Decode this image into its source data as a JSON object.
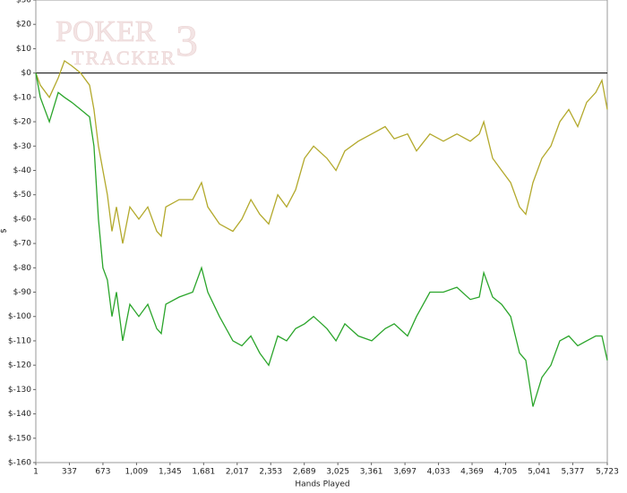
{
  "chart_data": {
    "type": "line",
    "watermark": [
      "POKER",
      "3",
      "TRACKER"
    ],
    "x_label": "Hands Played",
    "y_label": "$",
    "x": [
      1,
      46,
      136,
      225,
      288,
      360,
      449,
      539,
      583,
      628,
      673,
      718,
      763,
      808,
      871,
      943,
      1032,
      1122,
      1212,
      1257,
      1302,
      1436,
      1571,
      1660,
      1723,
      1840,
      1974,
      2064,
      2154,
      2243,
      2333,
      2423,
      2512,
      2602,
      2692,
      2782,
      2916,
      3006,
      3095,
      3230,
      3364,
      3499,
      3589,
      3723,
      3813,
      3947,
      4082,
      4217,
      4351,
      4441,
      4486,
      4575,
      4665,
      4755,
      4844,
      4907,
      4979,
      5068,
      5158,
      5248,
      5337,
      5427,
      5517,
      5607,
      5669,
      5723
    ],
    "series": [
      {
        "color": "#b3a92c",
        "values": [
          0,
          -5,
          -10,
          -2,
          5,
          3,
          0,
          -5,
          -15,
          -30,
          -40,
          -50,
          -65,
          -55,
          -70,
          -55,
          -60,
          -55,
          -65,
          -67,
          -55,
          -52,
          -52,
          -45,
          -55,
          -62,
          -65,
          -60,
          -52,
          -58,
          -62,
          -50,
          -55,
          -48,
          -35,
          -30,
          -35,
          -40,
          -32,
          -28,
          -25,
          -22,
          -27,
          -25,
          -32,
          -25,
          -28,
          -25,
          -28,
          -25,
          -20,
          -35,
          -40,
          -45,
          -55,
          -58,
          -45,
          -35,
          -30,
          -20,
          -15,
          -22,
          -12,
          -8,
          -3,
          -15
        ]
      },
      {
        "color": "#2ba52b",
        "values": [
          0,
          -10,
          -20,
          -8,
          -10,
          -12,
          -15,
          -18,
          -30,
          -60,
          -80,
          -85,
          -100,
          -90,
          -110,
          -95,
          -100,
          -95,
          -105,
          -107,
          -95,
          -92,
          -90,
          -80,
          -90,
          -100,
          -110,
          -112,
          -108,
          -115,
          -120,
          -108,
          -110,
          -105,
          -103,
          -100,
          -105,
          -110,
          -103,
          -108,
          -110,
          -105,
          -103,
          -108,
          -100,
          -90,
          -90,
          -88,
          -93,
          -92,
          -82,
          -92,
          -95,
          -100,
          -115,
          -118,
          -137,
          -125,
          -120,
          -110,
          -108,
          -112,
          -110,
          -108,
          -108,
          -118
        ]
      }
    ],
    "xlim": [
      1,
      5723
    ],
    "xticks": [
      1,
      337,
      673,
      {
        "value": 1009,
        "label": "1,009"
      },
      {
        "value": 1345,
        "label": "1,345"
      },
      {
        "value": 1681,
        "label": "1,681"
      },
      {
        "value": 2017,
        "label": "2,017"
      },
      {
        "value": 2353,
        "label": "2,353"
      },
      {
        "value": 2689,
        "label": "2,689"
      },
      {
        "value": 3025,
        "label": "3,025"
      },
      {
        "value": 3361,
        "label": "3,361"
      },
      {
        "value": 3697,
        "label": "3,697"
      },
      {
        "value": 4033,
        "label": "4,033"
      },
      {
        "value": 4369,
        "label": "4,369"
      },
      {
        "value": 4705,
        "label": "4,705"
      },
      {
        "value": 5041,
        "label": "5,041"
      },
      {
        "value": 5377,
        "label": "5,377"
      },
      {
        "value": 5723,
        "label": "5,723"
      }
    ],
    "ylim": [
      -160,
      30
    ],
    "yticks": [
      {
        "value": 30,
        "label": "$30"
      },
      {
        "value": 20,
        "label": "$20"
      },
      {
        "value": 10,
        "label": "$10"
      },
      {
        "value": 0,
        "label": "$0"
      },
      {
        "value": -10,
        "label": "$-10"
      },
      {
        "value": -20,
        "label": "$-20"
      },
      {
        "value": -30,
        "label": "$-30"
      },
      {
        "value": -40,
        "label": "$-40"
      },
      {
        "value": -50,
        "label": "$-50"
      },
      {
        "value": -60,
        "label": "$-60"
      },
      {
        "value": -70,
        "label": "$-70"
      },
      {
        "value": -80,
        "label": "$-80"
      },
      {
        "value": -90,
        "label": "$-90"
      },
      {
        "value": -100,
        "label": "$-100"
      },
      {
        "value": -110,
        "label": "$-110"
      },
      {
        "value": -120,
        "label": "$-120"
      },
      {
        "value": -130,
        "label": "$-130"
      },
      {
        "value": -140,
        "label": "$-140"
      },
      {
        "value": -150,
        "label": "$-150"
      },
      {
        "value": -160,
        "label": "$-160"
      }
    ],
    "grid": false,
    "zero_line": true
  }
}
